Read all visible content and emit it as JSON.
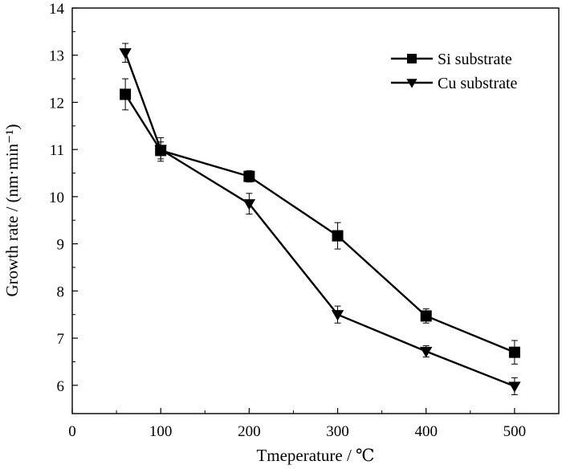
{
  "chart_data": {
    "type": "line",
    "title": "",
    "xlabel": "Tmeperature / ℃",
    "ylabel": "Growth rate / (nm·min⁻¹)",
    "xlim": [
      0,
      550
    ],
    "ylim": [
      5.4,
      14
    ],
    "xticks": [
      0,
      100,
      200,
      300,
      400,
      500
    ],
    "yticks": [
      6,
      7,
      8,
      9,
      10,
      11,
      12,
      13,
      14
    ],
    "grid": false,
    "legend_position": "top-right",
    "series": [
      {
        "name": "Si substrate",
        "marker": "square",
        "color": "#000000",
        "x": [
          60,
          100,
          200,
          300,
          400,
          500
        ],
        "y": [
          12.17,
          10.98,
          10.43,
          9.17,
          7.47,
          6.7
        ],
        "err": [
          0.33,
          0.18,
          0.12,
          0.28,
          0.15,
          0.25
        ]
      },
      {
        "name": "Cu substrate",
        "marker": "triangle-down",
        "color": "#000000",
        "x": [
          60,
          100,
          200,
          300,
          400,
          500
        ],
        "y": [
          13.05,
          11.0,
          9.85,
          7.5,
          6.72,
          5.98
        ],
        "err": [
          0.2,
          0.25,
          0.22,
          0.18,
          0.12,
          0.18
        ]
      }
    ]
  }
}
